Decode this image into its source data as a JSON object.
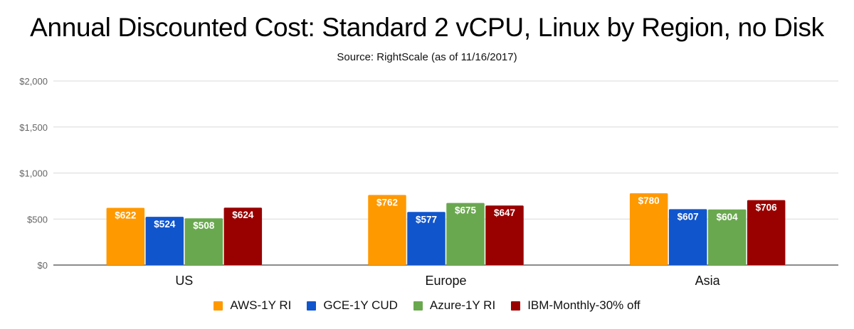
{
  "chart_data": {
    "type": "bar",
    "title": "Annual Discounted Cost: Standard 2 vCPU, Linux by Region, no Disk",
    "subtitle": "Source: RightScale (as of 11/16/2017)",
    "xlabel": "",
    "ylabel": "",
    "ylim": [
      0,
      2000
    ],
    "yticks": [
      0,
      500,
      1000,
      1500,
      2000
    ],
    "ytick_labels": [
      "$0",
      "$500",
      "$1,000",
      "$1,500",
      "$2,000"
    ],
    "grid": true,
    "legend_position": "bottom",
    "categories": [
      "US",
      "Europe",
      "Asia"
    ],
    "series": [
      {
        "name": "AWS-1Y RI",
        "color": "#ff9900",
        "values": [
          622,
          762,
          780
        ],
        "labels": [
          "$622",
          "$762",
          "$780"
        ]
      },
      {
        "name": "GCE-1Y CUD",
        "color": "#1155cc",
        "values": [
          524,
          577,
          607
        ],
        "labels": [
          "$524",
          "$577",
          "$607"
        ]
      },
      {
        "name": "Azure-1Y RI",
        "color": "#6aa84f",
        "values": [
          508,
          675,
          604
        ],
        "labels": [
          "$508",
          "$675",
          "$604"
        ]
      },
      {
        "name": "IBM-Monthly-30% off",
        "color": "#990000",
        "values": [
          624,
          647,
          706
        ],
        "labels": [
          "$624",
          "$647",
          "$706"
        ]
      }
    ]
  }
}
